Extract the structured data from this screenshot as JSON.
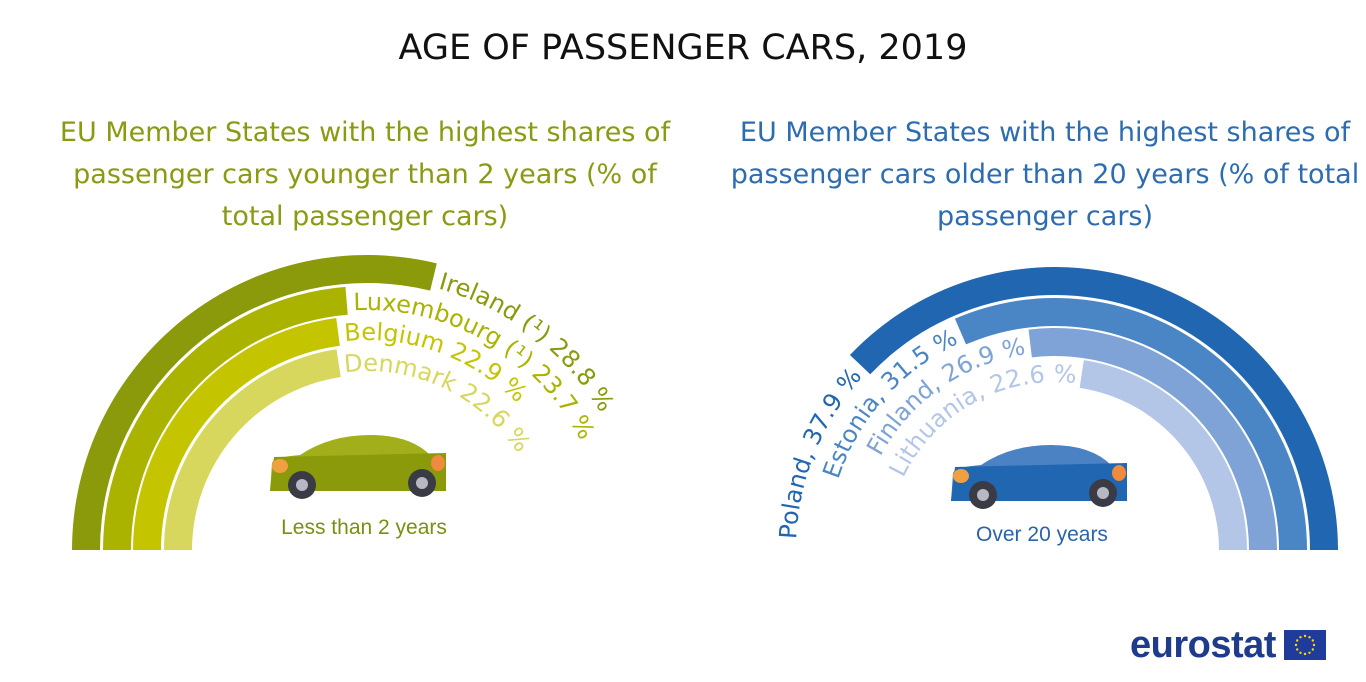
{
  "title": "AGE OF PASSENGER CARS, 2019",
  "chart_data": [
    {
      "type": "radial-bar",
      "title": "EU Member States with the highest shares of passenger cars younger than 2 years (% of total passenger cars)",
      "center_label": "Less than 2 years",
      "unit": "%",
      "full_circle_value": 100,
      "categories": [
        "Ireland (¹)",
        "Luxembourg (¹)",
        "Belgium",
        "Denmark"
      ],
      "values": [
        28.8,
        23.7,
        22.9,
        22.6
      ],
      "labels": [
        "Ireland (¹) 28.8 %",
        "Luxembourg (¹) 23.7 %",
        "Belgium 22.9 %",
        "Denmark 22.6 %"
      ],
      "colors": [
        "#8a9a0b",
        "#aab400",
        "#c4c500",
        "#d6d75c"
      ]
    },
    {
      "type": "radial-bar",
      "title": "EU Member States with the highest shares of passenger cars older than 20 years (% of total passenger cars)",
      "center_label": "Over 20 years",
      "unit": "%",
      "full_circle_value": 100,
      "categories": [
        "Poland",
        "Estonia",
        "Finland",
        "Lithuania"
      ],
      "values": [
        37.9,
        31.5,
        26.9,
        22.6
      ],
      "labels": [
        "Poland, 37.9 %",
        "Estonia, 31.5 %",
        "Finland, 26.9 %",
        "Lithuania, 22.6 %"
      ],
      "colors": [
        "#2166b0",
        "#4a86c6",
        "#7fa3d6",
        "#b3c6e7"
      ]
    }
  ],
  "logo": {
    "text": "eurostat",
    "flag": "eu-flag-icon"
  }
}
